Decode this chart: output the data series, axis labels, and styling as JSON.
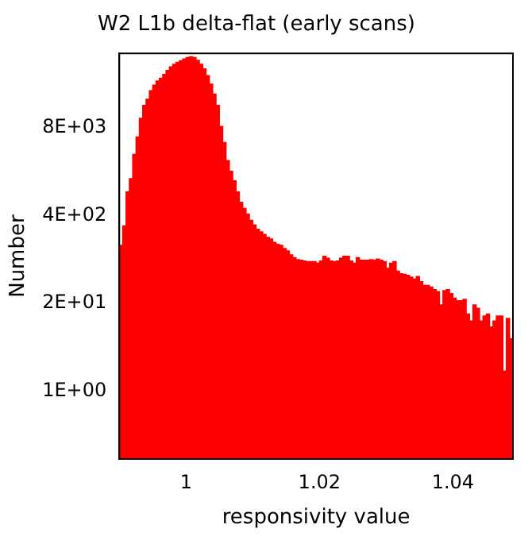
{
  "chart_data": {
    "type": "histogram",
    "title": "W2 L1b delta-flat (early scans)",
    "xlabel": "responsivity value",
    "ylabel": "Number",
    "color": "#ff0000",
    "bins": [
      0.99,
      0.9905,
      0.991,
      0.9915,
      0.992,
      0.9925,
      0.993,
      0.9935,
      0.994,
      0.9945,
      0.995,
      0.9955,
      0.996,
      0.9965,
      0.997,
      0.9975,
      0.998,
      0.9985,
      0.999,
      0.9995,
      1.0,
      1.0005,
      1.001,
      1.0015,
      1.002,
      1.0025,
      1.003,
      1.0035,
      1.004,
      1.0045,
      1.005,
      1.0055,
      1.006,
      1.0065,
      1.007,
      1.0075,
      1.008,
      1.0085,
      1.009,
      1.0095,
      1.01,
      1.0105,
      1.011,
      1.0115,
      1.012,
      1.0125,
      1.013,
      1.0135,
      1.014,
      1.0145,
      1.015,
      1.0155,
      1.016,
      1.0165,
      1.017,
      1.0175,
      1.018,
      1.0185,
      1.019,
      1.0195,
      1.02,
      1.0205,
      1.021,
      1.0215,
      1.022,
      1.0225,
      1.023,
      1.0235,
      1.024,
      1.0245,
      1.025,
      1.0255,
      1.026,
      1.0265,
      1.027,
      1.0275,
      1.028,
      1.0285,
      1.029,
      1.0295,
      1.03,
      1.0305,
      1.031,
      1.0315,
      1.032,
      1.0325,
      1.033,
      1.0335,
      1.034,
      1.0345,
      1.035,
      1.0355,
      1.036,
      1.0365,
      1.037,
      1.0375,
      1.038,
      1.0385,
      1.039,
      1.0395,
      1.04,
      1.0405,
      1.041,
      1.0415,
      1.042,
      1.0425,
      1.043,
      1.0435,
      1.044,
      1.0445,
      1.045,
      1.0455,
      1.046,
      1.0465,
      1.047,
      1.0475,
      1.048,
      1.0485,
      1.049
    ],
    "values": [
      145,
      280,
      890,
      1400,
      3200,
      5800,
      11000,
      17000,
      21000,
      28000,
      34000,
      39000,
      43000,
      49000,
      56000,
      63000,
      69000,
      74000,
      78000,
      83000,
      87000,
      89000,
      87000,
      79000,
      69000,
      59000,
      47000,
      35000,
      25000,
      17000,
      8300,
      4800,
      2600,
      1800,
      1300,
      890,
      630,
      510,
      420,
      340,
      290,
      250,
      230,
      210,
      190,
      180,
      160,
      150,
      145,
      130,
      120,
      105,
      95,
      89,
      87,
      85,
      83,
      83,
      83,
      79,
      85,
      100,
      93,
      85,
      83,
      85,
      93,
      100,
      100,
      85,
      79,
      95,
      87,
      87,
      87,
      89,
      87,
      91,
      87,
      83,
      66,
      79,
      83,
      60,
      55,
      54,
      52,
      49,
      46,
      50,
      42,
      37,
      37,
      35,
      32,
      30,
      19,
      31,
      32,
      28,
      24,
      22,
      22,
      23,
      14,
      11,
      19,
      17,
      11,
      13,
      14,
      9,
      11,
      13,
      13,
      2,
      12,
      6
    ],
    "xlim": [
      0.99,
      1.049
    ],
    "xticks": [
      1,
      1.02,
      1.04
    ],
    "ylim": [
      0.1,
      100000
    ],
    "log": true,
    "yticks": [
      {
        "value": 1,
        "label": "1E+00"
      },
      {
        "value": 20,
        "label": "2E+01"
      },
      {
        "value": 400,
        "label": "4E+02"
      },
      {
        "value": 8000,
        "label": "8E+03"
      }
    ],
    "grid": false,
    "legend": false
  }
}
